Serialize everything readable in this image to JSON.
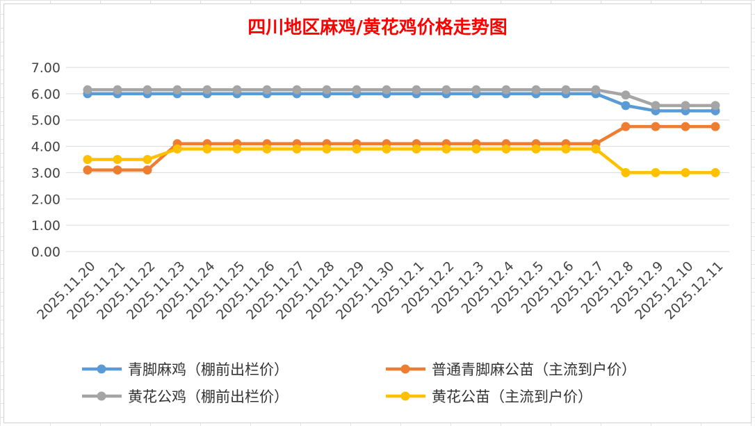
{
  "chart_data": {
    "type": "line",
    "title": "四川地区麻鸡/黄花鸡价格走势图",
    "xlabel": "",
    "ylabel": "",
    "ylim": [
      0,
      7
    ],
    "yticks": [
      "0.00",
      "1.00",
      "2.00",
      "3.00",
      "4.00",
      "5.00",
      "6.00",
      "7.00"
    ],
    "categories": [
      "2025.11.20",
      "2025.11.21",
      "2025.11.22",
      "2025.11.23",
      "2025.11.24",
      "2025.11.25",
      "2025.11.26",
      "2025.11.27",
      "2025.11.28",
      "2025.11.29",
      "2025.11.30",
      "2025.12.1",
      "2025.12.2",
      "2025.12.3",
      "2025.12.4",
      "2025.12.5",
      "2025.12.6",
      "2025.12.7",
      "2025.12.8",
      "2025.12.9",
      "2025.12.10",
      "2025.12.11"
    ],
    "grid": true,
    "legend_position": "bottom",
    "series": [
      {
        "name": "青脚麻鸡（棚前出栏价）",
        "color": "#5b9bd5",
        "values": [
          6.0,
          6.0,
          6.0,
          6.0,
          6.0,
          6.0,
          6.0,
          6.0,
          6.0,
          6.0,
          6.0,
          6.0,
          6.0,
          6.0,
          6.0,
          6.0,
          6.0,
          6.0,
          5.55,
          5.35,
          5.35,
          5.35
        ]
      },
      {
        "name": "普通青脚麻公苗（主流到户价）",
        "color": "#ed7d31",
        "values": [
          3.1,
          3.1,
          3.1,
          4.1,
          4.1,
          4.1,
          4.1,
          4.1,
          4.1,
          4.1,
          4.1,
          4.1,
          4.1,
          4.1,
          4.1,
          4.1,
          4.1,
          4.1,
          4.75,
          4.75,
          4.75,
          4.75
        ]
      },
      {
        "name": "黄花公鸡（棚前出栏价）",
        "color": "#a5a5a5",
        "values": [
          6.15,
          6.15,
          6.15,
          6.15,
          6.15,
          6.15,
          6.15,
          6.15,
          6.15,
          6.15,
          6.15,
          6.15,
          6.15,
          6.15,
          6.15,
          6.15,
          6.15,
          6.15,
          5.95,
          5.55,
          5.55,
          5.55
        ]
      },
      {
        "name": "黄花公苗（主流到户价）",
        "color": "#ffc000",
        "values": [
          3.5,
          3.5,
          3.5,
          3.9,
          3.9,
          3.9,
          3.9,
          3.9,
          3.9,
          3.9,
          3.9,
          3.9,
          3.9,
          3.9,
          3.9,
          3.9,
          3.9,
          3.9,
          3.0,
          3.0,
          3.0,
          3.0
        ]
      }
    ]
  }
}
